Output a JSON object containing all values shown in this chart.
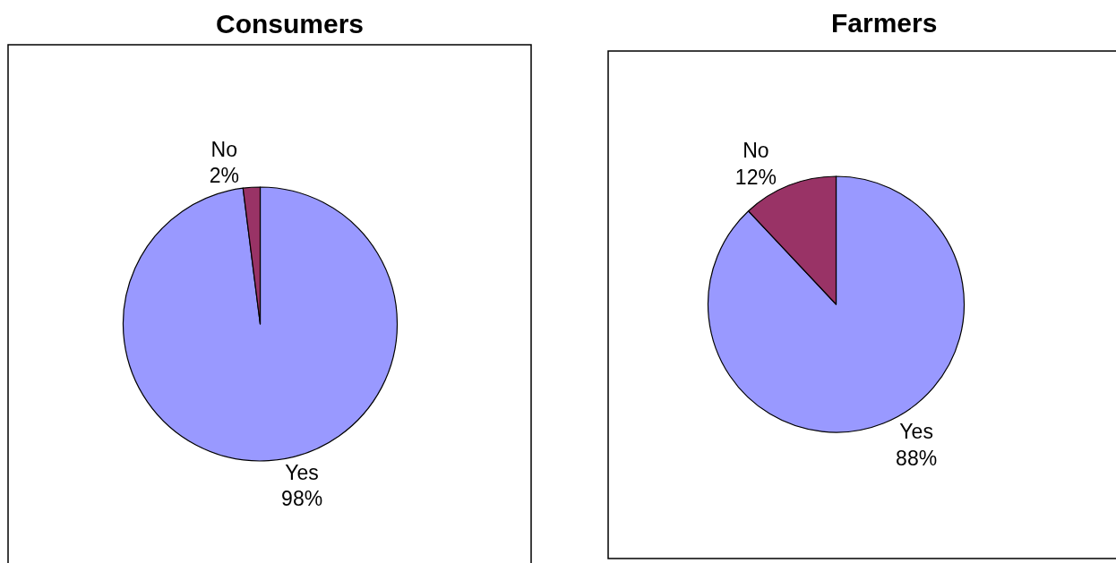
{
  "chart_data": [
    {
      "type": "pie",
      "title": "Consumers",
      "categories": [
        "Yes",
        "No"
      ],
      "values": [
        98,
        2
      ],
      "colors": [
        "#9999ff",
        "#993366"
      ],
      "value_labels": [
        "98%",
        "2%"
      ]
    },
    {
      "type": "pie",
      "title": "Farmers",
      "categories": [
        "Yes",
        "No"
      ],
      "values": [
        88,
        12
      ],
      "colors": [
        "#9999ff",
        "#993366"
      ],
      "value_labels": [
        "88%",
        "12%"
      ]
    }
  ]
}
